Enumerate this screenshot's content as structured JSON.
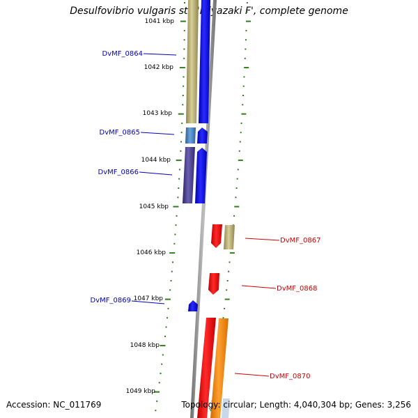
{
  "title": "Desulfovibrio vulgaris str. 'Miyazaki F', complete genome",
  "accession": "Accession: NC_011769",
  "summary": "Topology: circular; Length: 4,040,304 bp; Genes: 3,256",
  "scale_labels": [
    "1041 kbp",
    "1042 kbp",
    "1043 kbp",
    "1044 kbp",
    "1045 kbp",
    "1046 kbp",
    "1047 kbp",
    "1048 kbp",
    "1049 kbp"
  ],
  "gene_labels": [
    {
      "name": "DvMF_0864",
      "strand": "reverse"
    },
    {
      "name": "DvMF_0865",
      "strand": "reverse"
    },
    {
      "name": "DvMF_0866",
      "strand": "reverse"
    },
    {
      "name": "DvMF_0867",
      "strand": "forward"
    },
    {
      "name": "DvMF_0868",
      "strand": "forward"
    },
    {
      "name": "DvMF_0869",
      "strand": "reverse"
    },
    {
      "name": "DvMF_0870",
      "strand": "forward"
    }
  ],
  "colors": {
    "reverse_label": "#0000bb",
    "forward_label": "#cc0000",
    "scale_ticks": "#2e7d1e",
    "backbone": "#8a8a8a",
    "blue": "#0000ff",
    "red": "#ff0000",
    "orange": "#ff8c00",
    "khaki": "#b5a96a",
    "steel": "#4a86c0",
    "purple": "#4a3f8c"
  }
}
